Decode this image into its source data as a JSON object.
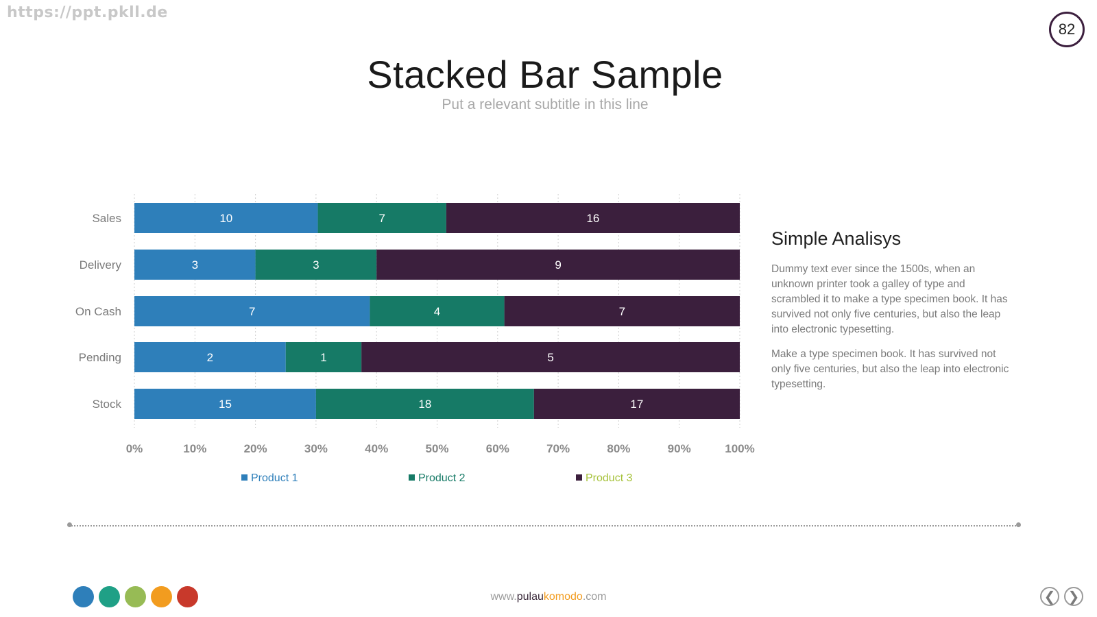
{
  "watermark": "https://ppt.pkll.de",
  "page_number": "82",
  "title": "Stacked Bar Sample",
  "subtitle": "Put a relevant subtitle in this line",
  "chart_data": {
    "type": "bar",
    "orientation": "horizontal",
    "stacking": "percent",
    "categories": [
      "Sales",
      "Delivery",
      "On Cash",
      "Pending",
      "Stock"
    ],
    "series": [
      {
        "name": "Product 1",
        "values": [
          10,
          3,
          7,
          2,
          15
        ],
        "color": "#2e7fba"
      },
      {
        "name": "Product 2",
        "values": [
          7,
          3,
          4,
          1,
          18
        ],
        "color": "#167a66"
      },
      {
        "name": "Product 3",
        "values": [
          16,
          9,
          7,
          5,
          17
        ],
        "color": "#3b1f3d"
      }
    ],
    "x_ticks": [
      "0%",
      "10%",
      "20%",
      "30%",
      "40%",
      "50%",
      "60%",
      "70%",
      "80%",
      "90%",
      "100%"
    ],
    "xlim": [
      0,
      100
    ],
    "grid": "vertical dotted",
    "legend": "bottom",
    "legend_text_colors": [
      "#2e7fba",
      "#167a66",
      "#a6c23a"
    ],
    "title": "",
    "xlabel": "",
    "ylabel": ""
  },
  "analysis": {
    "heading": "Simple Analisys",
    "paragraph_1": "Dummy text ever since the 1500s, when an unknown printer took a galley of type and scrambled it to make a type specimen book. It has survived not only five centuries, but also the leap into electronic typesetting.",
    "paragraph_2": "Make a type specimen book. It has survived not only five centuries, but also the leap into electronic typesetting."
  },
  "palette_dots": [
    "#2e7fba",
    "#1fa086",
    "#97bb55",
    "#f29c1f",
    "#c8392b"
  ],
  "footer": {
    "prefix": "www.",
    "mid": "pulau",
    "brand": "komodo",
    "suffix": ".com"
  },
  "nav": {
    "prev_icon": "chevron-left-icon",
    "next_icon": "chevron-right-icon",
    "prev_glyph": "❮",
    "next_glyph": "❯"
  }
}
